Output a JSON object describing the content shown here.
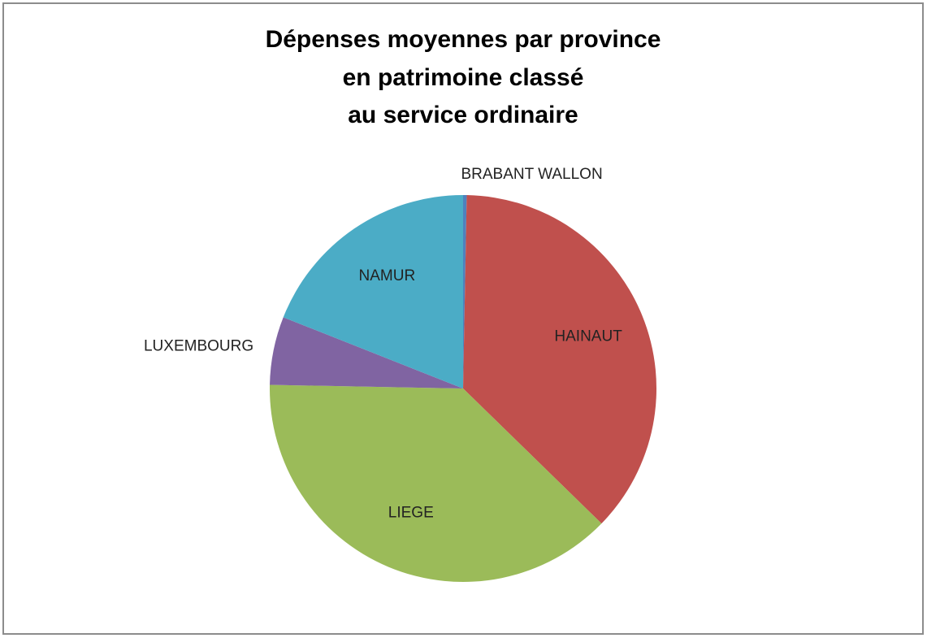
{
  "chart_data": {
    "type": "pie",
    "title": [
      "Dépenses moyennes par province",
      "en patrimoine classé",
      "au service ordinaire"
    ],
    "categories": [
      "BRABANT WALLON",
      "HAINAUT",
      "LIEGE",
      "LUXEMBOURG",
      "NAMUR"
    ],
    "values": [
      0.3,
      37,
      38,
      5.7,
      19
    ],
    "colors": [
      "#4f81bd",
      "#c0504d",
      "#9bbb59",
      "#8064a2",
      "#4bacc6"
    ]
  }
}
